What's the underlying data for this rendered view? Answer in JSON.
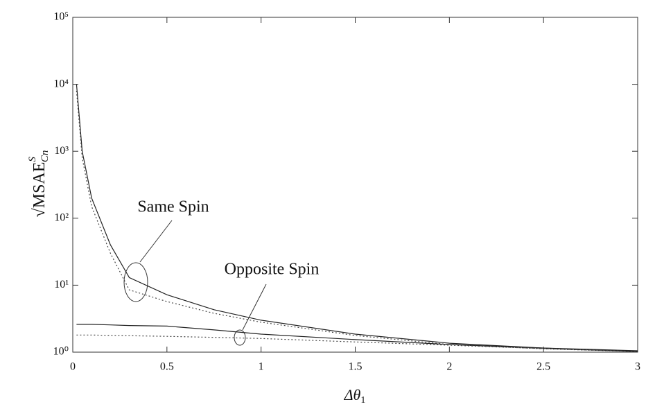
{
  "chart_data": {
    "type": "line",
    "xlabel": {
      "base": "Δθ",
      "sub": "1"
    },
    "ylabel": {
      "base": "√MSAE",
      "sup": "S",
      "sub": "Cn"
    },
    "annotations": [
      "Same Spin",
      "Opposite Spin"
    ],
    "x": [
      0.02,
      0.05,
      0.1,
      0.2,
      0.3,
      0.5,
      0.75,
      1,
      1.5,
      2,
      2.5,
      3
    ],
    "series": [
      {
        "color": "#222222",
        "dash": "solid",
        "values": [
          10000,
          1000,
          200,
          40,
          13,
          7.2,
          4.3,
          3,
          1.86,
          1.36,
          1.15,
          1.05
        ]
      },
      {
        "color": "#444444",
        "dash": "dotted",
        "values": [
          8000,
          800,
          150,
          30,
          8.5,
          5.7,
          3.8,
          2.8,
          1.77,
          1.3,
          1.12,
          1.02
        ]
      },
      {
        "color": "#222222",
        "dash": "solid",
        "values": [
          2.6,
          2.6,
          2.6,
          2.55,
          2.5,
          2.45,
          2.15,
          1.86,
          1.54,
          1.3,
          1.15,
          1.02
        ]
      },
      {
        "color": "#444444",
        "dash": "dotted",
        "values": [
          1.8,
          1.8,
          1.8,
          1.78,
          1.76,
          1.72,
          1.66,
          1.6,
          1.42,
          1.27,
          1.13,
          1.02
        ]
      }
    ],
    "xlim": [
      0,
      3
    ],
    "xticks": [
      0,
      0.5,
      1,
      1.5,
      2,
      2.5,
      3
    ],
    "yscale": "log",
    "ylim": [
      1,
      100000
    ],
    "yticks": [
      {
        "value": 1,
        "label": "10⁰"
      },
      {
        "value": 10,
        "label": "10¹"
      },
      {
        "value": 100,
        "label": "10²"
      },
      {
        "value": 1000,
        "label": "10³"
      },
      {
        "value": 10000,
        "label": "10⁴"
      },
      {
        "value": 100000,
        "label": "10⁵"
      }
    ],
    "grid": false
  }
}
